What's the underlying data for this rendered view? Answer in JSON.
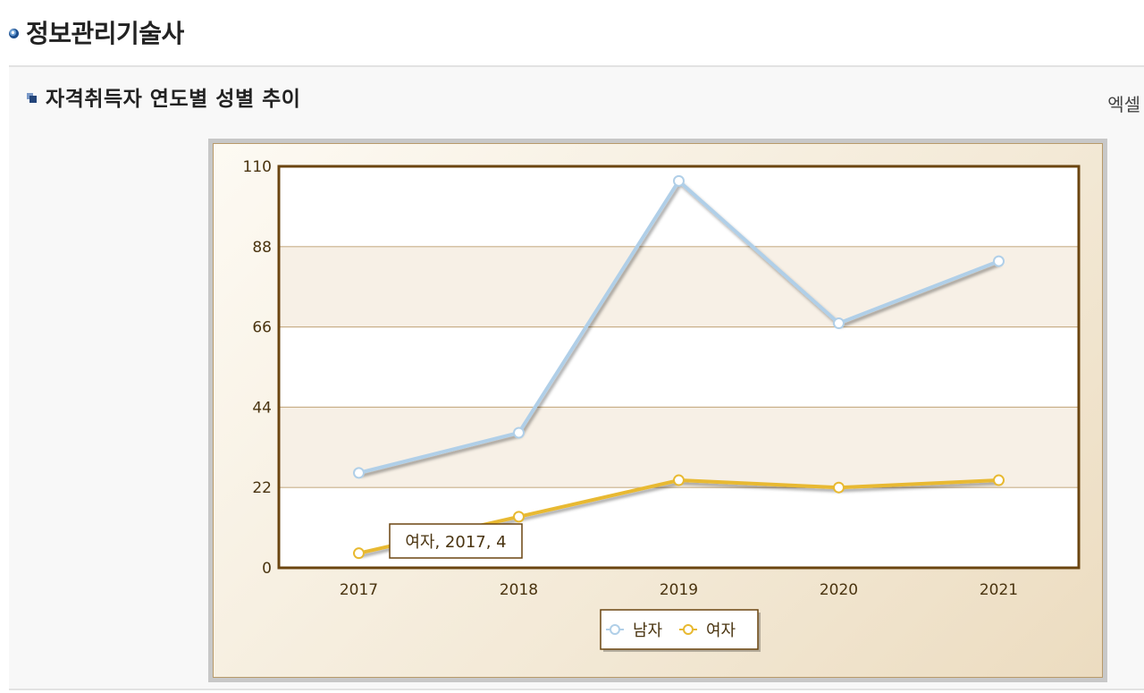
{
  "page": {
    "title": "정보관리기술사",
    "section_title": "자격취득자 연도별 성별 추이",
    "excel_label": "엑셀"
  },
  "chart_data": {
    "type": "line",
    "x": [
      "2017",
      "2018",
      "2019",
      "2020",
      "2021"
    ],
    "series": [
      {
        "name": "남자",
        "values": [
          26,
          37,
          106,
          67,
          84
        ],
        "color": "#b0cfe8"
      },
      {
        "name": "여자",
        "values": [
          4,
          14,
          24,
          22,
          24
        ],
        "color": "#e8b930"
      }
    ],
    "yticks": [
      0,
      22,
      44,
      66,
      88,
      110
    ],
    "ylim": [
      0,
      110
    ],
    "grid": true,
    "legend_position": "bottom",
    "tooltip": "여자, 2017, 4"
  }
}
